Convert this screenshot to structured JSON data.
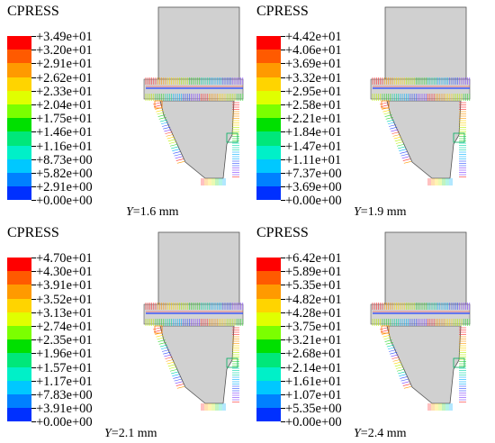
{
  "colors": [
    "#ff0000",
    "#ff5a00",
    "#ff9a00",
    "#ffd400",
    "#e0ff00",
    "#7bff00",
    "#00e000",
    "#00e77a",
    "#00f0c8",
    "#00c8ff",
    "#0080ff",
    "#0030ff",
    "#0000d0"
  ],
  "panels": [
    {
      "title": "CPRESS",
      "legend": [
        "+3.49e+01",
        "+3.20e+01",
        "+2.91e+01",
        "+2.62e+01",
        "+2.33e+01",
        "+2.04e+01",
        "+1.75e+01",
        "+1.46e+01",
        "+1.16e+01",
        "+8.73e+00",
        "+5.82e+00",
        "+2.91e+00",
        "+0.00e+00"
      ],
      "caption_var": "Y",
      "caption_value": "=1.6 mm"
    },
    {
      "title": "CPRESS",
      "legend": [
        "+4.42e+01",
        "+4.06e+01",
        "+3.69e+01",
        "+3.32e+01",
        "+2.95e+01",
        "+2.58e+01",
        "+2.21e+01",
        "+1.84e+01",
        "+1.47e+01",
        "+1.11e+01",
        "+7.37e+00",
        "+3.69e+00",
        "+0.00e+00"
      ],
      "caption_var": "Y",
      "caption_value": "=1.9 mm"
    },
    {
      "title": "CPRESS",
      "legend": [
        "+4.70e+01",
        "+4.30e+01",
        "+3.91e+01",
        "+3.52e+01",
        "+3.13e+01",
        "+2.74e+01",
        "+2.35e+01",
        "+1.96e+01",
        "+1.57e+01",
        "+1.17e+01",
        "+7.83e+00",
        "+3.91e+00",
        "+0.00e+00"
      ],
      "caption_var": "Y",
      "caption_value": "=2.1 mm"
    },
    {
      "title": "CPRESS",
      "legend": [
        "+6.42e+01",
        "+5.89e+01",
        "+5.35e+01",
        "+4.82e+01",
        "+4.28e+01",
        "+3.75e+01",
        "+3.21e+01",
        "+2.68e+01",
        "+2.14e+01",
        "+1.61e+01",
        "+1.07e+01",
        "+5.35e+00",
        "+0.00e+00"
      ],
      "caption_var": "Y",
      "caption_value": "=2.4 mm"
    }
  ]
}
